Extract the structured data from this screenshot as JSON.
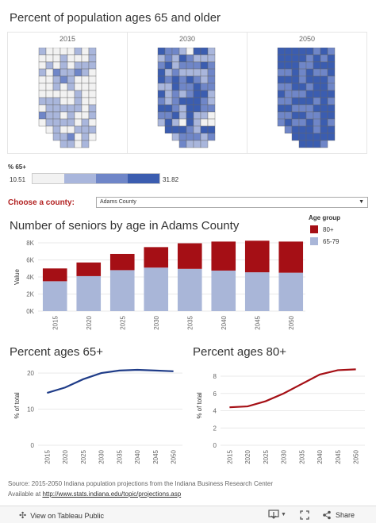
{
  "maps": {
    "title": "Percent of population ages 65 and older",
    "panels": [
      {
        "year": "2015"
      },
      {
        "year": "2030"
      },
      {
        "year": "2050"
      }
    ],
    "legend": {
      "title": "% 65+",
      "min_label": "10.51",
      "max_label": "31.82",
      "colors": [
        "#f2f2f2",
        "#a9b6dc",
        "#6f86c8",
        "#3b5db0"
      ]
    }
  },
  "county": {
    "label": "Choose a county:",
    "selected": "Adams County"
  },
  "bar_section": {
    "title": "Number of seniors by age in Adams County",
    "legend_title": "Age group",
    "legend_items": [
      {
        "label": "80+",
        "color": "#a50f15"
      },
      {
        "label": "65-79",
        "color": "#a9b6d8"
      }
    ]
  },
  "chart_data": [
    {
      "type": "bar",
      "stacked": true,
      "title": "Number of seniors by age in Adams County",
      "ylabel": "Value",
      "categories": [
        "2015",
        "2020",
        "2025",
        "2030",
        "2035",
        "2040",
        "2045",
        "2050"
      ],
      "series": [
        {
          "name": "65-79",
          "color": "#a9b6d8",
          "values": [
            3500,
            4100,
            4800,
            5100,
            4950,
            4750,
            4550,
            4500
          ]
        },
        {
          "name": "80+",
          "color": "#a50f15",
          "values": [
            1500,
            1600,
            1900,
            2400,
            3000,
            3400,
            3700,
            3650
          ]
        }
      ],
      "ylim": [
        0,
        8000
      ],
      "yticks": [
        "0K",
        "2K",
        "4K",
        "6K",
        "8K"
      ],
      "grid": true
    },
    {
      "type": "line",
      "title": "Percent ages 65+",
      "ylabel": "% of total",
      "x": [
        "2015",
        "2020",
        "2025",
        "2030",
        "2035",
        "2040",
        "2045",
        "2050"
      ],
      "series": [
        {
          "color": "#1f3c88",
          "values": [
            14.5,
            16.0,
            18.3,
            20.0,
            20.7,
            20.9,
            20.7,
            20.5
          ]
        }
      ],
      "ylim": [
        0,
        22
      ],
      "yticks": [
        "0",
        "10",
        "20"
      ],
      "grid": true
    },
    {
      "type": "line",
      "title": "Percent ages 80+",
      "ylabel": "% of total",
      "x": [
        "2015",
        "2020",
        "2025",
        "2030",
        "2035",
        "2040",
        "2045",
        "2050"
      ],
      "series": [
        {
          "color": "#a50f15",
          "values": [
            4.4,
            4.5,
            5.1,
            6.0,
            7.1,
            8.2,
            8.7,
            8.8
          ]
        }
      ],
      "ylim": [
        0,
        9.2
      ],
      "yticks": [
        "0",
        "2",
        "4",
        "6",
        "8"
      ],
      "grid": true
    }
  ],
  "source": {
    "line1": "Source: 2015-2050 Indiana population projections from the Indiana Business Research Center",
    "line2_prefix": "Available at ",
    "link": "http://www.stats.indiana.edu/topic/projections.asp"
  },
  "footer": {
    "view_label": "View on Tableau Public",
    "share_label": "Share",
    "icons": [
      "tableau-icon",
      "download-icon",
      "fullscreen-icon",
      "share-icon"
    ]
  }
}
